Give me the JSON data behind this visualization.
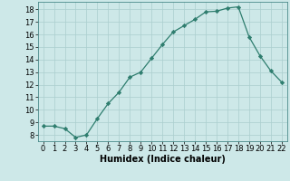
{
  "x": [
    0,
    1,
    2,
    3,
    4,
    5,
    6,
    7,
    8,
    9,
    10,
    11,
    12,
    13,
    14,
    15,
    16,
    17,
    18,
    19,
    20,
    21,
    22
  ],
  "y": [
    8.7,
    8.7,
    8.5,
    7.8,
    8.0,
    9.3,
    10.5,
    11.4,
    12.6,
    13.0,
    14.1,
    15.2,
    16.2,
    16.7,
    17.2,
    17.8,
    17.85,
    18.1,
    18.2,
    15.8,
    14.3,
    13.1,
    12.2
  ],
  "xlabel": "Humidex (Indice chaleur)",
  "line_color": "#2e7d6e",
  "marker_color": "#2e7d6e",
  "bg_color": "#cde8e8",
  "grid_color": "#aacece",
  "ylim": [
    7.5,
    18.6
  ],
  "xlim": [
    -0.5,
    22.5
  ],
  "yticks": [
    8,
    9,
    10,
    11,
    12,
    13,
    14,
    15,
    16,
    17,
    18
  ],
  "xticks": [
    0,
    1,
    2,
    3,
    4,
    5,
    6,
    7,
    8,
    9,
    10,
    11,
    12,
    13,
    14,
    15,
    16,
    17,
    18,
    19,
    20,
    21,
    22
  ],
  "label_fontsize": 7.0,
  "tick_fontsize": 6.0
}
